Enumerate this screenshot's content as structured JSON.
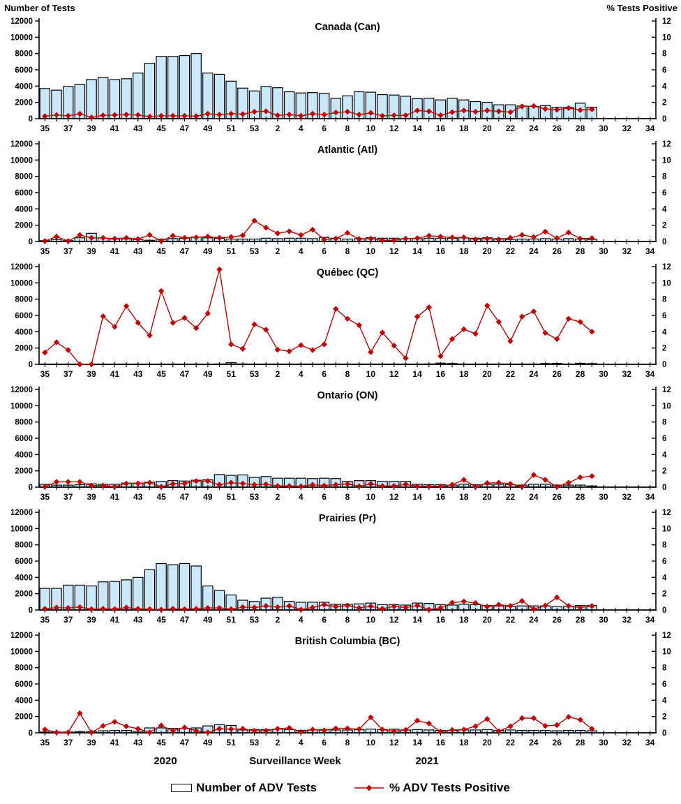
{
  "header": {
    "left_axis_title": "Number of Tests",
    "right_axis_title": "%  Tests Positive"
  },
  "footer": {
    "year_left": "2020",
    "axis_label": "Surveillance Week",
    "year_right": "2021"
  },
  "legend": {
    "bars_label": "Number of ADV Tests",
    "line_label": "% ADV Tests Positive"
  },
  "colors": {
    "bar_fill": "#CBE7FA",
    "bar_stroke": "#000000",
    "line": "#C00000",
    "marker": "#C00000",
    "axis": "#000000"
  },
  "chart_data": {
    "type": "bar",
    "subtype": "combo-bar-line-multi-panel",
    "x": {
      "weeks": [
        "35",
        "36",
        "37",
        "38",
        "39",
        "40",
        "41",
        "42",
        "43",
        "44",
        "45",
        "46",
        "47",
        "48",
        "49",
        "50",
        "51",
        "52",
        "53",
        "1",
        "2",
        "3",
        "4",
        "5",
        "6",
        "7",
        "8",
        "9",
        "10",
        "11",
        "12",
        "13",
        "14",
        "15",
        "16",
        "17",
        "18",
        "19",
        "20",
        "21",
        "22",
        "23",
        "24",
        "25",
        "26",
        "27",
        "28",
        "29",
        "30",
        "31",
        "32",
        "33",
        "34"
      ],
      "weeks_2020_count": 19,
      "tick_labels_shown": [
        "35",
        "37",
        "39",
        "41",
        "43",
        "45",
        "47",
        "49",
        "51",
        "53",
        "2",
        "4",
        "6",
        "8",
        "10",
        "12",
        "14",
        "16",
        "18",
        "20",
        "22",
        "24",
        "26",
        "28",
        "30",
        "32",
        "34"
      ]
    },
    "ylim_left": [
      0,
      12000
    ],
    "ylim_right": [
      0,
      12
    ],
    "yticks_left": [
      0,
      2000,
      4000,
      6000,
      8000,
      10000,
      12000
    ],
    "yticks_right": [
      0,
      2,
      4,
      6,
      8,
      10,
      12
    ],
    "series_names": [
      "Number of ADV Tests",
      "% ADV Tests Positive"
    ],
    "panels": [
      {
        "title": "Canada (Can)",
        "tests": [
          3700,
          3500,
          3950,
          4200,
          4800,
          5050,
          4800,
          4900,
          5600,
          6800,
          7650,
          7650,
          7750,
          8000,
          5600,
          5450,
          4600,
          3750,
          3400,
          3950,
          3800,
          3300,
          3150,
          3200,
          3100,
          2500,
          2800,
          3300,
          3250,
          2950,
          2900,
          2750,
          2450,
          2500,
          2300,
          2500,
          2300,
          2100,
          2000,
          1700,
          1700,
          1550,
          1500,
          1600,
          1400,
          1400,
          1900,
          1400,
          null,
          null,
          null,
          null,
          null
        ],
        "pct_positive": [
          0.3,
          0.45,
          0.35,
          0.6,
          0.15,
          0.4,
          0.45,
          0.5,
          0.45,
          0.25,
          0.35,
          0.35,
          0.35,
          0.3,
          0.6,
          0.5,
          0.6,
          0.55,
          0.85,
          0.9,
          0.4,
          0.5,
          0.35,
          0.6,
          0.5,
          0.75,
          0.85,
          0.5,
          0.7,
          0.35,
          0.4,
          0.4,
          1.0,
          0.9,
          0.4,
          0.8,
          1.0,
          0.85,
          1.0,
          0.9,
          0.8,
          1.5,
          1.55,
          1.2,
          1.1,
          1.3,
          1.05,
          1.15,
          null,
          null,
          null,
          null,
          null
        ]
      },
      {
        "title": "Atlantic (Atl)",
        "tests": [
          100,
          250,
          100,
          450,
          1000,
          420,
          300,
          300,
          250,
          150,
          300,
          350,
          400,
          550,
          450,
          400,
          300,
          300,
          300,
          400,
          350,
          400,
          400,
          350,
          500,
          400,
          300,
          350,
          450,
          400,
          400,
          350,
          350,
          400,
          400,
          400,
          450,
          400,
          450,
          350,
          250,
          300,
          300,
          350,
          300,
          350,
          300,
          250,
          null,
          null,
          null,
          null,
          null
        ],
        "pct_positive": [
          0.05,
          0.6,
          0.05,
          0.8,
          0.45,
          0.45,
          0.35,
          0.45,
          0.3,
          0.8,
          0.05,
          0.7,
          0.45,
          0.5,
          0.6,
          0.45,
          0.55,
          0.75,
          2.55,
          1.7,
          1.0,
          1.25,
          0.8,
          1.45,
          0.25,
          0.35,
          1.05,
          0.3,
          0.35,
          0.15,
          0.15,
          0.35,
          0.4,
          0.7,
          0.6,
          0.5,
          0.5,
          0.25,
          0.35,
          0.25,
          0.45,
          0.8,
          0.55,
          1.2,
          0.4,
          1.1,
          0.35,
          0.4,
          null,
          null,
          null,
          null,
          null
        ]
      },
      {
        "title": "Québec (QC)",
        "tests": [
          30,
          30,
          30,
          30,
          30,
          30,
          30,
          30,
          30,
          30,
          30,
          30,
          30,
          30,
          30,
          50,
          200,
          50,
          40,
          40,
          40,
          40,
          40,
          40,
          40,
          40,
          40,
          40,
          40,
          40,
          40,
          40,
          40,
          50,
          150,
          100,
          40,
          40,
          40,
          40,
          40,
          40,
          40,
          100,
          120,
          40,
          130,
          90,
          null,
          null,
          null,
          null,
          null
        ],
        "pct_positive": [
          1.45,
          2.7,
          1.75,
          0,
          0,
          5.9,
          4.6,
          7.15,
          5.1,
          3.55,
          9.0,
          5.1,
          5.7,
          4.45,
          6.25,
          11.65,
          2.45,
          1.9,
          4.9,
          4.25,
          1.8,
          1.6,
          2.35,
          1.75,
          2.45,
          6.8,
          5.6,
          4.8,
          1.5,
          3.9,
          2.3,
          0.75,
          5.85,
          7.0,
          1.0,
          3.1,
          4.3,
          3.75,
          7.2,
          5.2,
          2.85,
          5.85,
          6.5,
          3.85,
          3.1,
          5.6,
          5.2,
          4.0,
          null,
          null,
          null,
          null,
          null
        ]
      },
      {
        "title": "Ontario (ON)",
        "tests": [
          350,
          250,
          250,
          300,
          400,
          350,
          350,
          500,
          500,
          600,
          700,
          800,
          750,
          850,
          900,
          1550,
          1450,
          1500,
          1200,
          1300,
          1100,
          1100,
          1100,
          1050,
          1100,
          1050,
          700,
          800,
          800,
          700,
          700,
          700,
          350,
          300,
          300,
          250,
          350,
          300,
          350,
          350,
          300,
          250,
          350,
          350,
          250,
          250,
          250,
          150,
          null,
          null,
          null,
          null,
          null
        ],
        "pct_positive": [
          0.05,
          0.65,
          0.65,
          0.65,
          0.2,
          0.2,
          0.05,
          0.45,
          0.45,
          0.55,
          0.05,
          0.4,
          0.45,
          0.75,
          0.75,
          0.3,
          0.55,
          0.45,
          0.3,
          0.35,
          0.15,
          0.15,
          0.1,
          0.3,
          0.2,
          0.3,
          0.4,
          0.1,
          0.4,
          0.15,
          0.15,
          0.35,
          0.1,
          0.1,
          0.1,
          0.3,
          0.9,
          0.05,
          0.5,
          0.55,
          0.4,
          0.05,
          1.5,
          0.9,
          0.05,
          0.55,
          1.2,
          1.35,
          null,
          null,
          null,
          null,
          null
        ]
      },
      {
        "title": "Prairies (Pr)",
        "tests": [
          2650,
          2650,
          3050,
          3050,
          2950,
          3450,
          3500,
          3700,
          4000,
          4950,
          5700,
          5550,
          5700,
          5400,
          2950,
          2400,
          1850,
          1200,
          1050,
          1450,
          1550,
          1050,
          950,
          950,
          950,
          700,
          700,
          750,
          850,
          650,
          650,
          600,
          850,
          800,
          650,
          600,
          700,
          650,
          550,
          500,
          450,
          500,
          500,
          500,
          400,
          450,
          550,
          550,
          null,
          null,
          null,
          null,
          null
        ],
        "pct_positive": [
          0.15,
          0.3,
          0.25,
          0.35,
          0.1,
          0.15,
          0.1,
          0.3,
          0.15,
          0.1,
          0.05,
          0.15,
          0.1,
          0.15,
          0.25,
          0.25,
          0.1,
          0.35,
          0.3,
          0.5,
          0.35,
          0.5,
          0.05,
          0.3,
          0.65,
          0.4,
          0.55,
          0.25,
          0.45,
          0.15,
          0.45,
          0.3,
          0.55,
          0.05,
          0.25,
          0.9,
          1.05,
          0.85,
          0.4,
          0.65,
          0.5,
          1.1,
          0.1,
          0.55,
          1.55,
          0.5,
          0.3,
          0.5,
          null,
          null,
          null,
          null,
          null
        ]
      },
      {
        "title": "British Columbia (BC)",
        "tests": [
          100,
          100,
          100,
          150,
          150,
          250,
          300,
          300,
          200,
          600,
          600,
          550,
          550,
          600,
          850,
          1000,
          900,
          350,
          400,
          400,
          450,
          400,
          300,
          350,
          400,
          350,
          350,
          400,
          450,
          400,
          450,
          350,
          400,
          350,
          300,
          300,
          350,
          350,
          400,
          300,
          350,
          300,
          300,
          300,
          250,
          300,
          300,
          250,
          null,
          null,
          null,
          null,
          null
        ],
        "pct_positive": [
          0.4,
          0.05,
          0.05,
          2.4,
          0.05,
          0.85,
          1.35,
          0.8,
          0.5,
          0.05,
          0.9,
          0.25,
          0.65,
          0.25,
          0.05,
          0.5,
          0.45,
          0.5,
          0.25,
          0.25,
          0.5,
          0.6,
          0.1,
          0.4,
          0.3,
          0.55,
          0.55,
          0.45,
          1.9,
          0.4,
          0.2,
          0.35,
          1.5,
          1.15,
          0.15,
          0.35,
          0.4,
          0.8,
          1.7,
          0.2,
          0.8,
          1.8,
          1.8,
          0.85,
          0.95,
          1.95,
          1.6,
          0.5,
          null,
          null,
          null,
          null,
          null
        ]
      }
    ]
  }
}
